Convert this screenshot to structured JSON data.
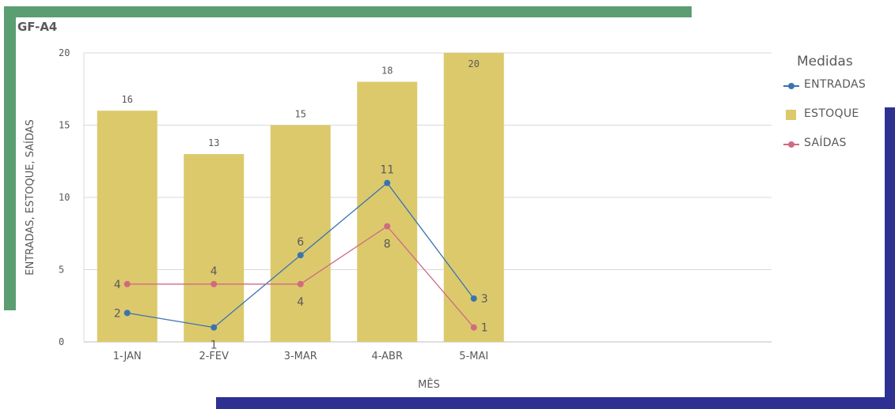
{
  "title": "GF-A4",
  "colors": {
    "estoque": "#dcc96c",
    "entradas": "#3a74b0",
    "saidas": "#d06a82",
    "decor_green": "#5a9e72",
    "decor_navy": "#2e3192",
    "grid": "#d9d9d9",
    "text": "#595959"
  },
  "legend": {
    "title": "Medidas",
    "items": [
      {
        "label": "ENTRADAS",
        "kind": "line",
        "color": "#3a74b0"
      },
      {
        "label": "ESTOQUE",
        "kind": "bar",
        "color": "#dcc96c"
      },
      {
        "label": "SAÍDAS",
        "kind": "line",
        "color": "#d06a82"
      }
    ]
  },
  "chart_data": {
    "type": "bar",
    "title": "GF-A4",
    "xlabel": "MÊS",
    "ylabel": "ENTRADAS, ESTOQUE, SAÍDAS",
    "categories": [
      "1-JAN",
      "2-FEV",
      "3-MAR",
      "4-ABR",
      "5-MAI"
    ],
    "ylim": [
      0,
      20
    ],
    "yticks": [
      "0",
      "5",
      "10",
      "15",
      "20"
    ],
    "grid": true,
    "legend_position": "right",
    "bar_series": {
      "name": "ESTOQUE",
      "values": [
        16,
        13,
        15,
        18,
        20
      ]
    },
    "line_series": [
      {
        "name": "ENTRADAS",
        "values": [
          2,
          1,
          6,
          11,
          3
        ]
      },
      {
        "name": "SAÍDAS",
        "values": [
          4,
          4,
          4,
          8,
          1
        ]
      }
    ]
  }
}
